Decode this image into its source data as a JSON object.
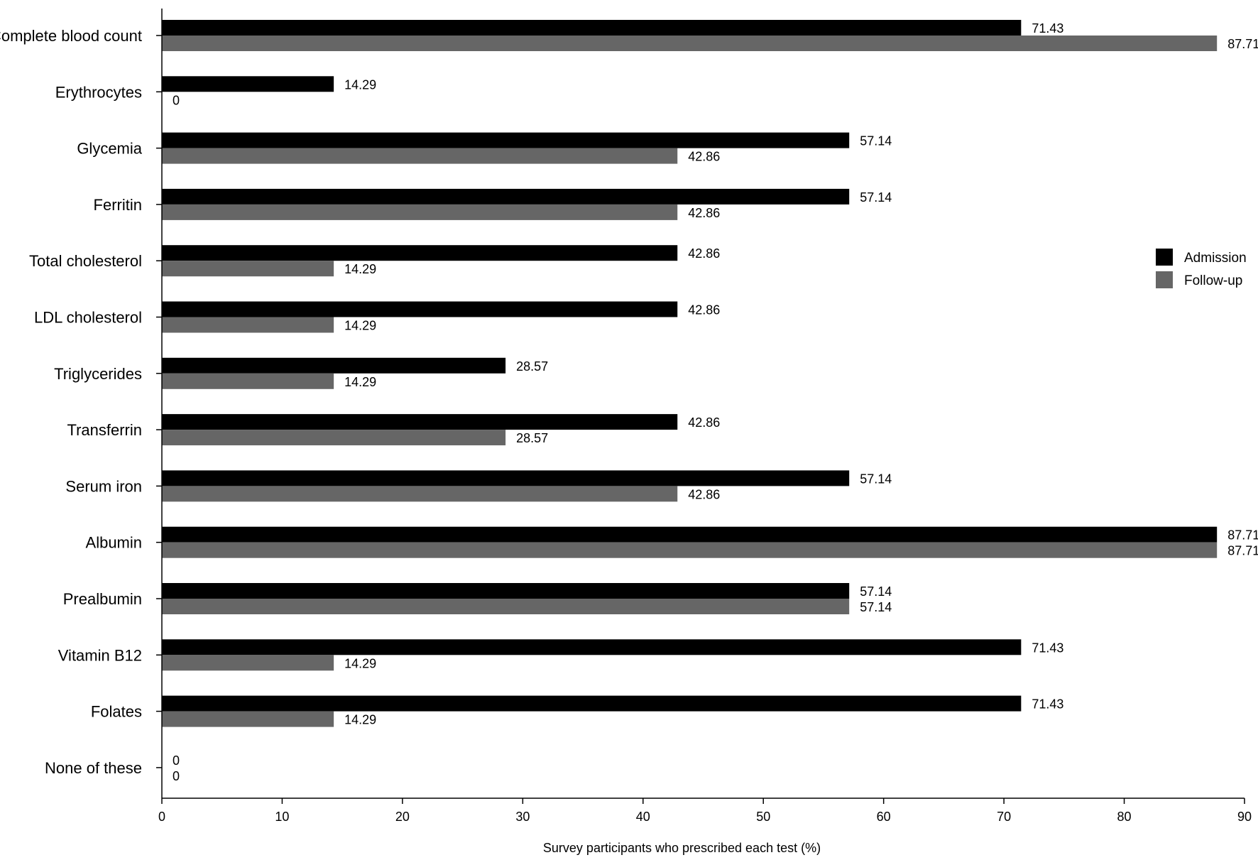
{
  "chart_data": {
    "type": "bar",
    "orientation": "horizontal",
    "title": "",
    "xlabel": "Survey participants who prescribed each test (%)",
    "ylabel": "",
    "xlim": [
      0,
      90
    ],
    "xticks": [
      0,
      10,
      20,
      30,
      40,
      50,
      60,
      70,
      80,
      90
    ],
    "grid": false,
    "legend_position": "right",
    "categories": [
      "Complete blood count",
      "Erythrocytes",
      "Glycemia",
      "Ferritin",
      "Total cholesterol",
      "LDL cholesterol",
      "Triglycerides",
      "Transferrin",
      "Serum iron",
      "Albumin",
      "Prealbumin",
      "Vitamin B12",
      "Folates",
      "None of these"
    ],
    "series": [
      {
        "name": "Admission",
        "color": "#000000",
        "values": [
          71.43,
          14.29,
          57.14,
          57.14,
          42.86,
          42.86,
          28.57,
          42.86,
          57.14,
          87.71,
          57.14,
          71.43,
          71.43,
          0
        ]
      },
      {
        "name": "Follow-up",
        "color": "#666666",
        "values": [
          87.71,
          0,
          42.86,
          42.86,
          14.29,
          14.29,
          14.29,
          28.57,
          42.86,
          87.71,
          57.14,
          14.29,
          14.29,
          0
        ]
      }
    ],
    "value_labels": [
      [
        "71.43",
        "14.29",
        "57.14",
        "57.14",
        "42.86",
        "42.86",
        "28.57",
        "42.86",
        "57.14",
        "87.71",
        "57.14",
        "71.43",
        "71.43",
        "0"
      ],
      [
        "87.71",
        "0",
        "42.86",
        "42.86",
        "14.29",
        "14.29",
        "14.29",
        "28.57",
        "42.86",
        "87.71",
        "57.14",
        "14.29",
        "14.29",
        "0"
      ]
    ]
  }
}
